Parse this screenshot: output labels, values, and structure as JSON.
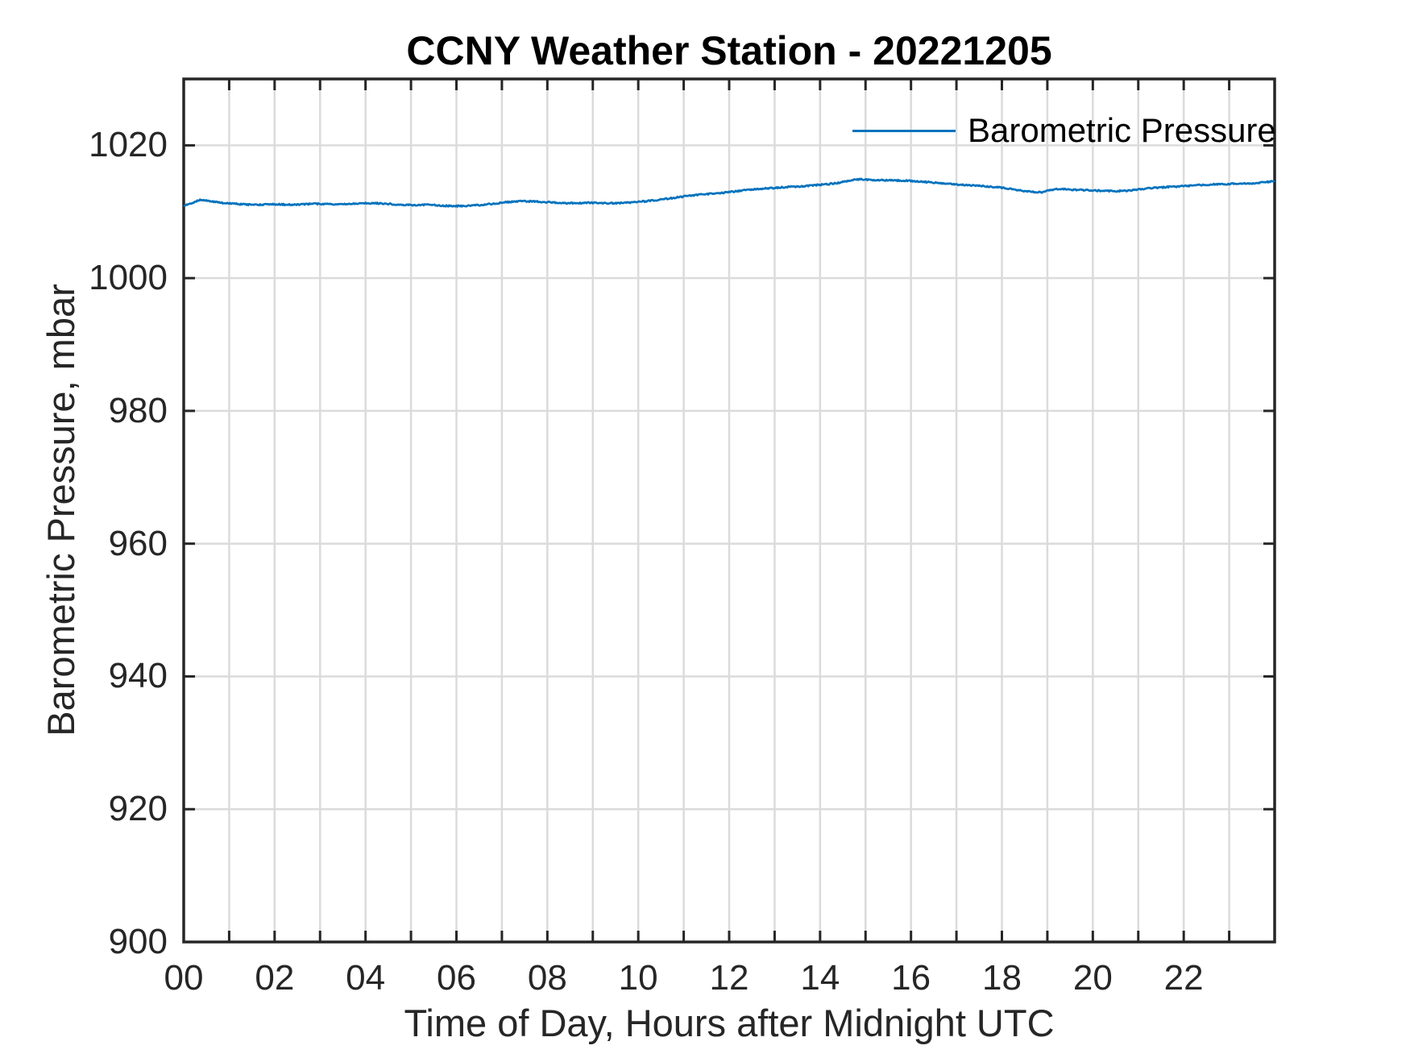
{
  "chart_data": {
    "type": "line",
    "title": "CCNY Weather Station - 20221205",
    "xlabel": "Time of Day, Hours after Midnight UTC",
    "ylabel": "Barometric Pressure, mbar",
    "xlim": [
      0,
      24
    ],
    "ylim": [
      900,
      1030
    ],
    "x_ticks": [
      0,
      2,
      4,
      6,
      8,
      10,
      12,
      14,
      16,
      18,
      20,
      22
    ],
    "x_tick_labels": [
      "00",
      "02",
      "04",
      "06",
      "08",
      "10",
      "12",
      "14",
      "16",
      "18",
      "20",
      "22"
    ],
    "x_grid_step_hours": 1,
    "y_ticks": [
      900,
      920,
      940,
      960,
      980,
      1000,
      1020
    ],
    "y_tick_labels": [
      "900",
      "920",
      "940",
      "960",
      "980",
      "1000",
      "1020"
    ],
    "grid": true,
    "legend": {
      "position": "top-right",
      "entries": [
        {
          "label": "Barometric Pressure",
          "color": "#0072BD"
        }
      ]
    },
    "series": [
      {
        "name": "Barometric Pressure",
        "color": "#0072BD",
        "jitter_mbar": 0.1,
        "points": [
          [
            0.0,
            1010.9
          ],
          [
            0.15,
            1011.2
          ],
          [
            0.35,
            1011.75
          ],
          [
            0.5,
            1011.7
          ],
          [
            0.7,
            1011.45
          ],
          [
            0.9,
            1011.3
          ],
          [
            1.2,
            1011.15
          ],
          [
            1.5,
            1011.05
          ],
          [
            1.8,
            1011.1
          ],
          [
            2.1,
            1011.1
          ],
          [
            2.4,
            1011.05
          ],
          [
            2.7,
            1011.15
          ],
          [
            3.0,
            1011.2
          ],
          [
            3.3,
            1011.1
          ],
          [
            3.6,
            1011.15
          ],
          [
            3.9,
            1011.25
          ],
          [
            4.2,
            1011.3
          ],
          [
            4.5,
            1011.2
          ],
          [
            4.8,
            1011.05
          ],
          [
            5.1,
            1011.0
          ],
          [
            5.4,
            1011.05
          ],
          [
            5.7,
            1010.9
          ],
          [
            6.0,
            1010.85
          ],
          [
            6.2,
            1010.9
          ],
          [
            6.5,
            1011.0
          ],
          [
            6.8,
            1011.2
          ],
          [
            7.1,
            1011.45
          ],
          [
            7.4,
            1011.6
          ],
          [
            7.7,
            1011.55
          ],
          [
            8.0,
            1011.45
          ],
          [
            8.3,
            1011.3
          ],
          [
            8.6,
            1011.3
          ],
          [
            9.0,
            1011.35
          ],
          [
            9.3,
            1011.3
          ],
          [
            9.6,
            1011.3
          ],
          [
            9.9,
            1011.45
          ],
          [
            10.2,
            1011.6
          ],
          [
            10.5,
            1011.85
          ],
          [
            10.8,
            1012.1
          ],
          [
            11.1,
            1012.4
          ],
          [
            11.4,
            1012.6
          ],
          [
            11.7,
            1012.75
          ],
          [
            12.0,
            1012.95
          ],
          [
            12.3,
            1013.2
          ],
          [
            12.6,
            1013.4
          ],
          [
            12.9,
            1013.55
          ],
          [
            13.2,
            1013.7
          ],
          [
            13.5,
            1013.8
          ],
          [
            13.8,
            1013.95
          ],
          [
            14.1,
            1014.1
          ],
          [
            14.4,
            1014.35
          ],
          [
            14.7,
            1014.75
          ],
          [
            14.9,
            1014.9
          ],
          [
            15.1,
            1014.8
          ],
          [
            15.4,
            1014.75
          ],
          [
            15.7,
            1014.7
          ],
          [
            16.0,
            1014.65
          ],
          [
            16.3,
            1014.5
          ],
          [
            16.6,
            1014.35
          ],
          [
            16.9,
            1014.15
          ],
          [
            17.2,
            1014.0
          ],
          [
            17.5,
            1013.9
          ],
          [
            17.8,
            1013.75
          ],
          [
            18.1,
            1013.55
          ],
          [
            18.4,
            1013.2
          ],
          [
            18.7,
            1012.95
          ],
          [
            18.9,
            1012.95
          ],
          [
            19.1,
            1013.3
          ],
          [
            19.3,
            1013.45
          ],
          [
            19.6,
            1013.3
          ],
          [
            19.9,
            1013.25
          ],
          [
            20.2,
            1013.15
          ],
          [
            20.5,
            1013.1
          ],
          [
            20.8,
            1013.2
          ],
          [
            21.1,
            1013.45
          ],
          [
            21.4,
            1013.6
          ],
          [
            21.7,
            1013.75
          ],
          [
            22.0,
            1013.85
          ],
          [
            22.3,
            1014.0
          ],
          [
            22.6,
            1014.1
          ],
          [
            22.9,
            1014.15
          ],
          [
            23.2,
            1014.25
          ],
          [
            23.5,
            1014.3
          ],
          [
            23.8,
            1014.45
          ],
          [
            24.0,
            1014.65
          ]
        ]
      }
    ],
    "colors": {
      "line": "#0072BD",
      "grid": "#dbdbdb",
      "axis": "#262626",
      "title": "#000000",
      "background": "#ffffff"
    }
  }
}
